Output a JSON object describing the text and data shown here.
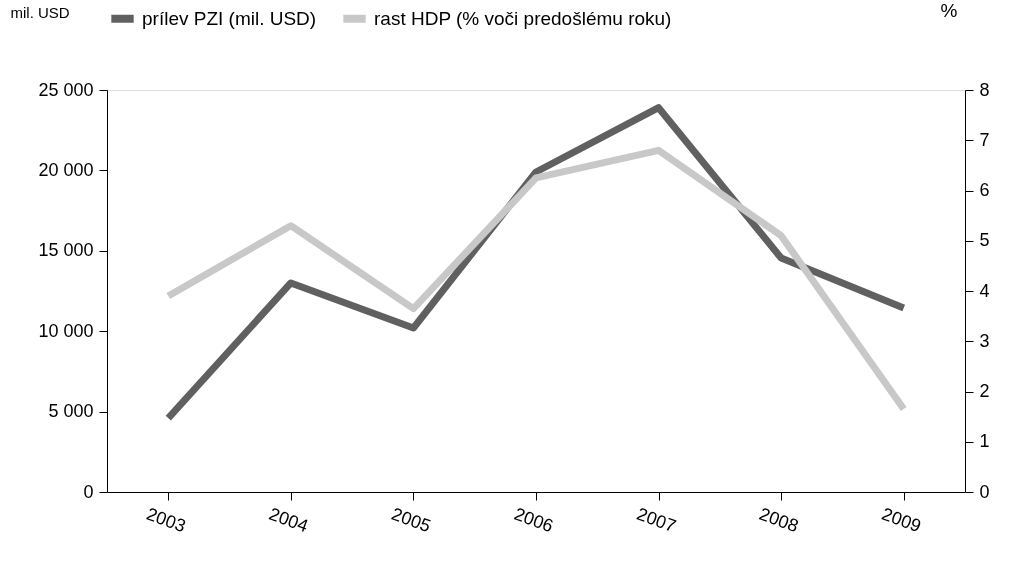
{
  "chart_data": {
    "type": "line",
    "categories": [
      "2003",
      "2004",
      "2005",
      "2006",
      "2007",
      "2008",
      "2009"
    ],
    "ylabel": "mil. USD",
    "y2label": "%",
    "series": [
      {
        "name": "prílev PZI (mil. USD)",
        "color": "#606060",
        "values": [
          4600,
          13000,
          10200,
          19900,
          23900,
          14550,
          11450
        ]
      },
      {
        "name": "rast HDP (% voči predošlému roku)",
        "color": "#c8c8c8",
        "axis": "y2",
        "values": [
          3.9,
          5.3,
          3.65,
          6.25,
          6.8,
          5.1,
          1.65
        ]
      }
    ],
    "ylim": [
      0,
      25000
    ],
    "yticks": [
      {
        "value": 0,
        "label": "0"
      },
      {
        "value": 5000,
        "label": "5 000"
      },
      {
        "value": 10000,
        "label": "10 000"
      },
      {
        "value": 15000,
        "label": "15 000"
      },
      {
        "value": 20000,
        "label": "20 000"
      },
      {
        "value": 25000,
        "label": "25 000"
      }
    ],
    "y2lim": [
      0,
      8
    ],
    "y2ticks": [
      0,
      1,
      2,
      3,
      4,
      5,
      6,
      7,
      8
    ],
    "grid": false,
    "legend": "top",
    "marker": "none",
    "line_style": "solid"
  }
}
